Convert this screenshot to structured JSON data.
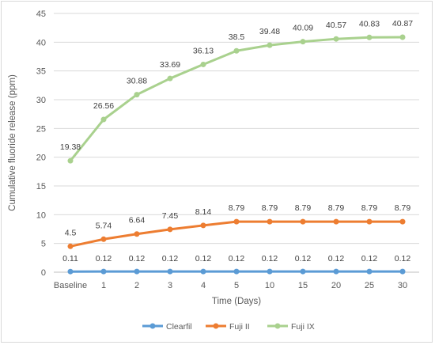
{
  "chart_data": {
    "type": "line",
    "title": "",
    "xlabel": "Time (Days)",
    "ylabel": "Cumulative fluoride release (ppm)",
    "categories": [
      "Baseline",
      "1",
      "2",
      "3",
      "4",
      "5",
      "10",
      "15",
      "20",
      "25",
      "30"
    ],
    "ylim": [
      0,
      45
    ],
    "yticks": [
      0,
      5,
      10,
      15,
      20,
      25,
      30,
      35,
      40,
      45
    ],
    "grid": true,
    "legend_position": "bottom",
    "series": [
      {
        "name": "Clearfil",
        "color": "#5B9BD5",
        "values": [
          0.11,
          0.12,
          0.12,
          0.12,
          0.12,
          0.12,
          0.12,
          0.12,
          0.12,
          0.12,
          0.12
        ],
        "labels": [
          "0.11",
          "0.12",
          "0.12",
          "0.12",
          "0.12",
          "0.12",
          "0.12",
          "0.12",
          "0.12",
          "0.12",
          "0.12"
        ]
      },
      {
        "name": "Fuji II",
        "color": "#ED7D31",
        "values": [
          4.5,
          5.74,
          6.64,
          7.45,
          8.14,
          8.79,
          8.79,
          8.79,
          8.79,
          8.79,
          8.79
        ],
        "labels": [
          "4.5",
          "5.74",
          "6.64",
          "7.45",
          "8.14",
          "8.79",
          "8.79",
          "8.79",
          "8.79",
          "8.79",
          "8.79"
        ]
      },
      {
        "name": "Fuji IX",
        "color": "#A9D18E",
        "values": [
          19.38,
          26.56,
          30.88,
          33.69,
          36.13,
          38.5,
          39.48,
          40.09,
          40.57,
          40.83,
          40.87
        ],
        "labels": [
          "19.38",
          "26.56",
          "30.88",
          "33.69",
          "36.13",
          "38.5",
          "39.48",
          "40.09",
          "40.57",
          "40.83",
          "40.87"
        ]
      }
    ]
  }
}
